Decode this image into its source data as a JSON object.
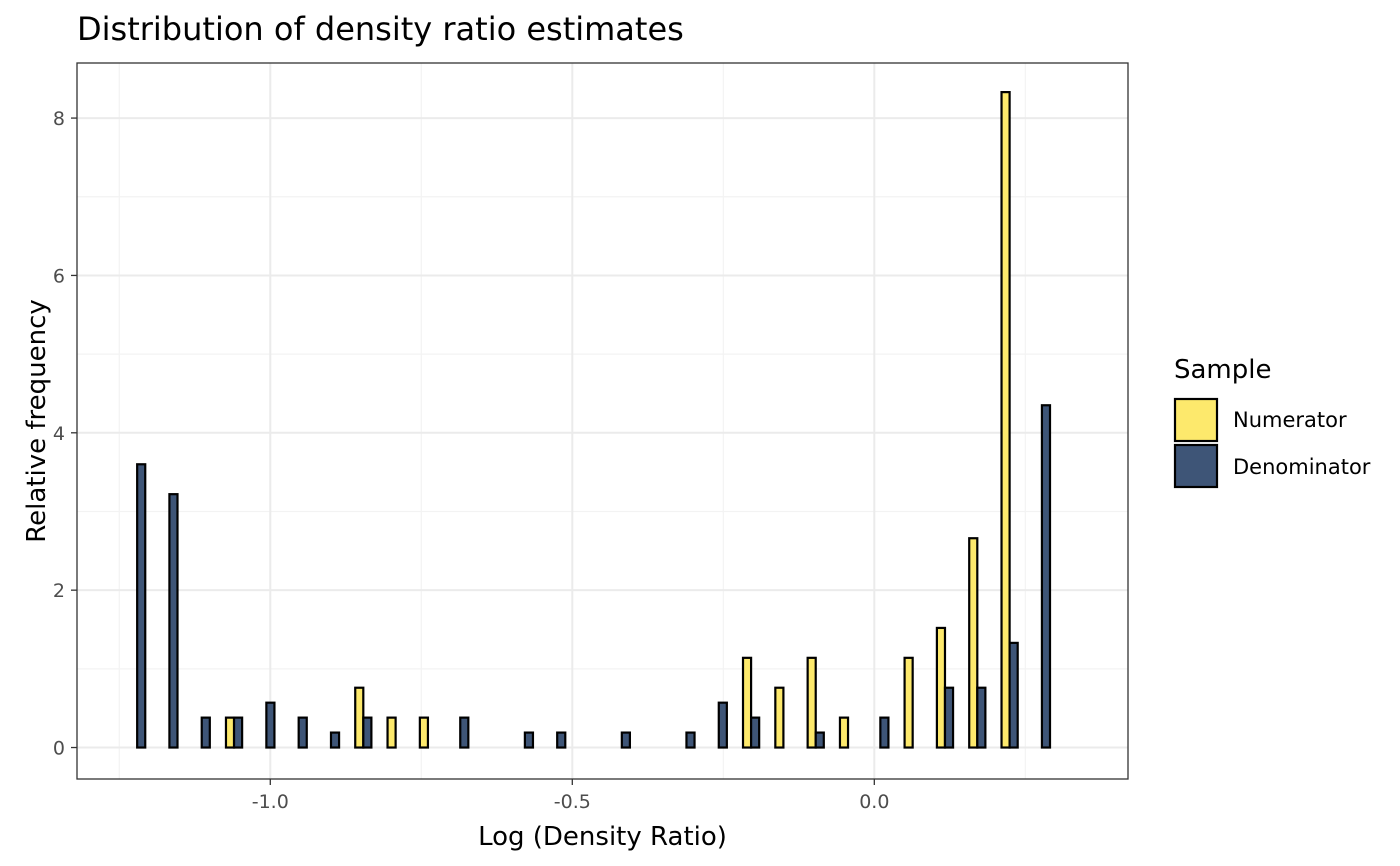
{
  "chart_data": {
    "type": "bar",
    "title": "Distribution of density ratio estimates",
    "xlabel": "Log (Density Ratio)",
    "ylabel": "Relative frequency",
    "xlim": [
      -1.32,
      0.42
    ],
    "ylim": [
      -0.4,
      8.7
    ],
    "x_ticks": [
      -1.0,
      -0.5,
      0.0
    ],
    "x_tick_labels": [
      "-1.0",
      "-0.5",
      "0.0"
    ],
    "y_ticks": [
      0,
      2,
      4,
      6,
      8
    ],
    "y_tick_labels": [
      "0",
      "2",
      "4",
      "6",
      "8"
    ],
    "grid": true,
    "legend": {
      "title": "Sample",
      "position": "right",
      "entries": [
        "Numerator",
        "Denominator"
      ]
    },
    "bin_width": 0.0535,
    "series": [
      {
        "name": "Numerator",
        "color": "#FDE96C",
        "x": [
          -1.2204,
          -1.167,
          -1.1135,
          -1.06,
          -1.0065,
          -0.953,
          -0.8995,
          -0.846,
          -0.7925,
          -0.739,
          -0.6855,
          -0.632,
          -0.5785,
          -0.525,
          -0.4715,
          -0.418,
          -0.3645,
          -0.311,
          -0.2575,
          -0.204,
          -0.1505,
          -0.097,
          -0.0435,
          0.01,
          0.0635,
          0.117,
          0.1705,
          0.224,
          0.2775,
          0.331
        ],
        "values": [
          0,
          0,
          0,
          0.38,
          0,
          0,
          0,
          0.76,
          0.38,
          0.38,
          0,
          0,
          0,
          0,
          0,
          0,
          0,
          0,
          0,
          1.14,
          0.76,
          1.14,
          0.38,
          0,
          1.14,
          1.52,
          2.66,
          8.33,
          0,
          0
        ]
      },
      {
        "name": "Denominator",
        "color": "#3E5577",
        "x": [
          -1.2204,
          -1.167,
          -1.1135,
          -1.06,
          -1.0065,
          -0.953,
          -0.8995,
          -0.846,
          -0.7925,
          -0.739,
          -0.6855,
          -0.632,
          -0.5785,
          -0.525,
          -0.4715,
          -0.418,
          -0.3645,
          -0.311,
          -0.2575,
          -0.204,
          -0.1505,
          -0.097,
          -0.0435,
          0.01,
          0.0635,
          0.117,
          0.1705,
          0.224,
          0.2775,
          0.331
        ],
        "values": [
          3.6,
          3.22,
          0.38,
          0.38,
          0.57,
          0.38,
          0.19,
          0.38,
          0,
          0,
          0.38,
          0,
          0.19,
          0.19,
          0,
          0.19,
          0,
          0.19,
          0.57,
          0.38,
          0,
          0.19,
          0,
          0.38,
          0,
          0.76,
          0.76,
          1.33,
          4.35,
          0
        ]
      }
    ]
  }
}
